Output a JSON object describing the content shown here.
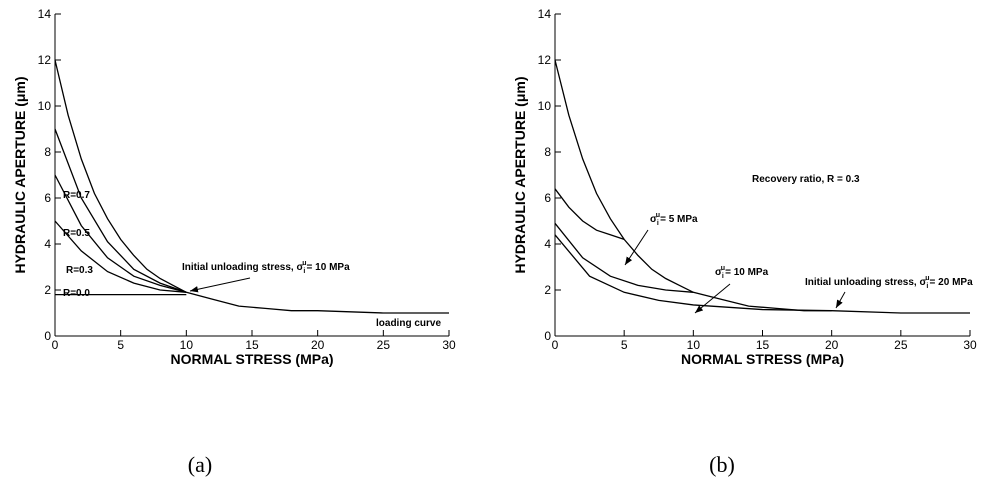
{
  "chart_data": [
    {
      "type": "line",
      "caption": "(a)",
      "xlabel": "NORMAL STRESS (MPa)",
      "ylabel": "HYDRAULIC APERTURE (μm)",
      "xlim": [
        0,
        30
      ],
      "ylim": [
        0,
        14
      ],
      "xticks": [
        0,
        5,
        10,
        15,
        20,
        25,
        30
      ],
      "yticks": [
        0,
        2,
        4,
        6,
        8,
        10,
        12,
        14
      ],
      "series": [
        {
          "color": "#000000",
          "x": [
            0,
            1,
            2,
            3,
            4,
            5,
            6,
            7,
            8,
            9,
            10,
            12,
            14,
            16,
            18,
            20,
            25,
            30
          ],
          "values": [
            12,
            9.6,
            7.7,
            6.2,
            5.1,
            4.2,
            3.5,
            2.9,
            2.5,
            2.2,
            1.9,
            1.6,
            1.3,
            1.2,
            1.1,
            1.1,
            1.0,
            1.0
          ]
        },
        {
          "color": "#000000",
          "x": [
            0,
            2,
            4,
            6,
            8,
            10
          ],
          "values": [
            9.0,
            6.0,
            4.1,
            2.9,
            2.3,
            1.9
          ]
        },
        {
          "color": "#000000",
          "x": [
            0,
            2,
            4,
            6,
            8,
            10
          ],
          "values": [
            7.0,
            4.8,
            3.4,
            2.6,
            2.2,
            1.9
          ]
        },
        {
          "color": "#000000",
          "x": [
            0,
            2,
            4,
            6,
            8,
            10
          ],
          "values": [
            5.0,
            3.7,
            2.8,
            2.3,
            2.0,
            1.9
          ]
        },
        {
          "color": "#000000",
          "x": [
            0,
            10
          ],
          "values": [
            1.8,
            1.8
          ]
        }
      ],
      "annotations": [
        {
          "text": "R=0.7"
        },
        {
          "text": "R=0.5"
        },
        {
          "text": "R=0.3"
        },
        {
          "text": "R=0.0"
        },
        {
          "text": "Initial unloading stress, σ",
          "sub": "i",
          "sup": "u",
          "after": "= 10 MPa"
        },
        {
          "text": "loading curve"
        }
      ]
    },
    {
      "type": "line",
      "caption": "(b)",
      "xlabel": "NORMAL STRESS (MPa)",
      "ylabel": "HYDRAULIC APERTURE (μm)",
      "xlim": [
        0,
        30
      ],
      "ylim": [
        0,
        14
      ],
      "xticks": [
        0,
        5,
        10,
        15,
        20,
        25,
        30
      ],
      "yticks": [
        0,
        2,
        4,
        6,
        8,
        10,
        12,
        14
      ],
      "series": [
        {
          "color": "#000000",
          "x": [
            0,
            1,
            2,
            3,
            4,
            5,
            6,
            7,
            8,
            9,
            10,
            12,
            14,
            16,
            18,
            20,
            25,
            30
          ],
          "values": [
            12,
            9.6,
            7.7,
            6.2,
            5.1,
            4.2,
            3.5,
            2.9,
            2.5,
            2.2,
            1.9,
            1.6,
            1.3,
            1.2,
            1.1,
            1.1,
            1.0,
            1.0
          ]
        },
        {
          "color": "#000000",
          "x": [
            0,
            1,
            2,
            3,
            4,
            5
          ],
          "values": [
            6.4,
            5.6,
            5.0,
            4.6,
            4.4,
            4.2
          ]
        },
        {
          "color": "#000000",
          "x": [
            0,
            2,
            4,
            6,
            8,
            10
          ],
          "values": [
            4.9,
            3.4,
            2.6,
            2.2,
            2.0,
            1.9
          ]
        },
        {
          "color": "#000000",
          "x": [
            0,
            2.5,
            5,
            7.5,
            10,
            15,
            20
          ],
          "values": [
            4.4,
            2.6,
            1.9,
            1.55,
            1.35,
            1.15,
            1.1
          ]
        }
      ],
      "annotations": [
        {
          "text": "Recovery ratio, R = 0.3"
        },
        {
          "text": "σ",
          "sub": "i",
          "sup": "u",
          "after": "= 5 MPa"
        },
        {
          "text": "σ",
          "sub": "i",
          "sup": "u",
          "after": "= 10 MPa"
        },
        {
          "text": "Initial unloading stress, σ",
          "sub": "i",
          "sup": "u",
          "after": "= 20 MPa"
        }
      ]
    }
  ]
}
